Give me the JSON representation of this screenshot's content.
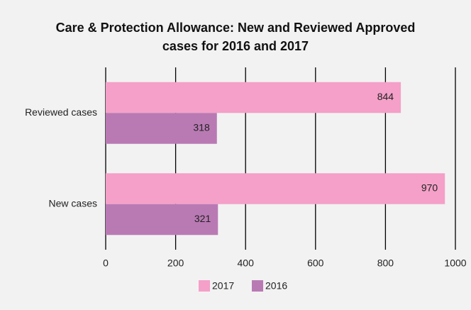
{
  "chart_data": {
    "type": "bar",
    "orientation": "horizontal",
    "title": "Care & Protection Allowance: New and Reviewed Approved cases for 2016 and 2017",
    "categories": [
      "Reviewed cases",
      "New cases"
    ],
    "series": [
      {
        "name": "2017",
        "color": "#f4a0c8",
        "values": [
          844,
          970
        ]
      },
      {
        "name": "2016",
        "color": "#b97ab4",
        "values": [
          318,
          321
        ]
      }
    ],
    "xlim": [
      0,
      1000
    ],
    "xticks": [
      0,
      200,
      400,
      600,
      800,
      1000
    ],
    "grid": true,
    "legend": "bottom"
  }
}
